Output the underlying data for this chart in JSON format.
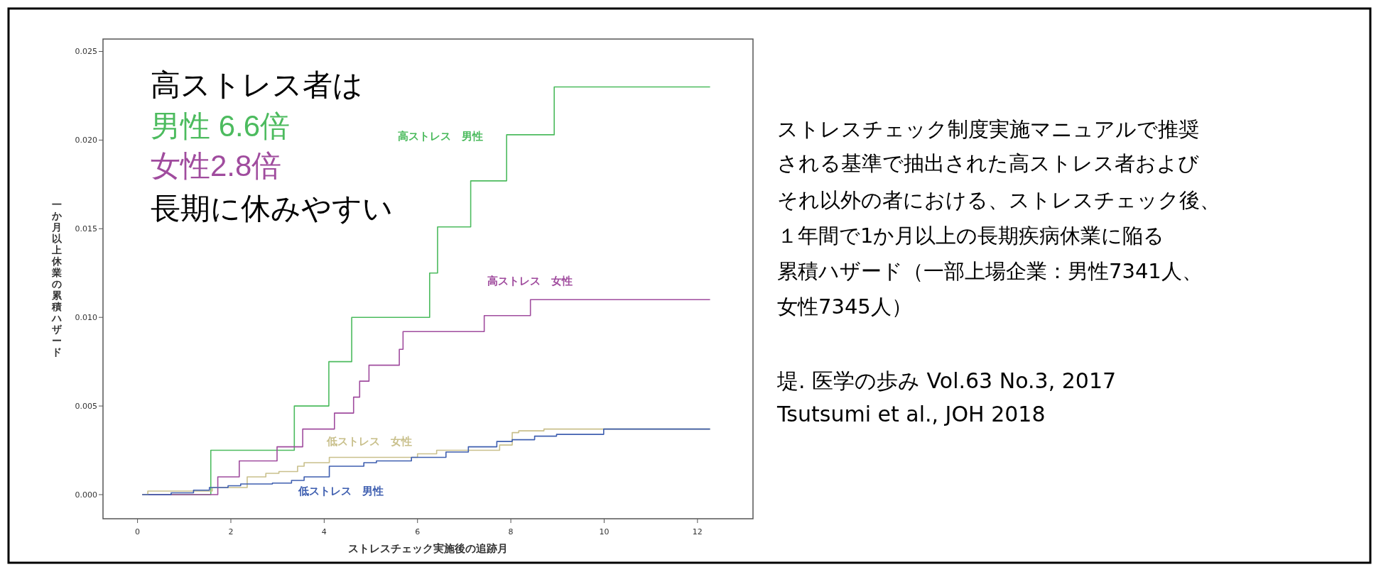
{
  "chart_data": {
    "type": "step",
    "xlabel": "ストレスチェック実施後の追跡月",
    "ylabel": "一か月以上休業の累積ハザード",
    "xlim": [
      -0.74,
      13.19
    ],
    "ylim": [
      -0.00136,
      0.0257
    ],
    "xticks": [
      0,
      2,
      4,
      6,
      8,
      10,
      12
    ],
    "yticks": [
      {
        "value": 0,
        "label": "0.000"
      },
      {
        "value": 0.005,
        "label": "0.005"
      },
      {
        "value": 0.01,
        "label": "0.010"
      },
      {
        "value": 0.015,
        "label": "0.015"
      },
      {
        "value": 0.02,
        "label": "0.020"
      },
      {
        "value": 0.025,
        "label": "0.025"
      }
    ],
    "series": [
      {
        "name": "高ストレス　男性",
        "color": "#4cbb5e",
        "x": [
          0.1,
          1.57,
          3.36,
          4.1,
          4.59,
          6.26,
          6.43,
          7.14,
          7.91,
          8.93,
          12.27
        ],
        "values": [
          0,
          0.0025,
          0.005,
          0.0075,
          0.01,
          0.0125,
          0.0151,
          0.0177,
          0.0203,
          0.023,
          0.023
        ]
      },
      {
        "name": "高ストレス　女性",
        "color": "#a04c9e",
        "x": [
          0.1,
          1.72,
          2.18,
          2.99,
          3.54,
          4.22,
          4.63,
          4.76,
          4.96,
          5.61,
          5.69,
          7.43,
          8.42,
          12.27
        ],
        "values": [
          0,
          0.001,
          0.0019,
          0.0027,
          0.0037,
          0.0046,
          0.0055,
          0.0064,
          0.0073,
          0.0082,
          0.0092,
          0.0101,
          0.011,
          0.011
        ]
      },
      {
        "name": "低ストレス　女性",
        "color": "#c9c08c",
        "x": [
          0.1,
          0.22,
          1.6,
          2.35,
          2.75,
          3.03,
          3.43,
          3.57,
          4.11,
          6.0,
          6.41,
          7.76,
          8.03,
          8.17,
          8.71,
          12.27
        ],
        "values": [
          0,
          0.0002,
          0.0004,
          0.001,
          0.0012,
          0.0013,
          0.0016,
          0.0018,
          0.0021,
          0.0023,
          0.0025,
          0.0028,
          0.0035,
          0.0036,
          0.0037,
          0.0037
        ]
      },
      {
        "name": "低ストレス　男性",
        "color": "#3f5fb0",
        "x": [
          0.1,
          0.72,
          1.2,
          1.54,
          1.94,
          2.21,
          2.89,
          3.3,
          3.57,
          4.11,
          4.85,
          5.12,
          5.87,
          6.61,
          7.09,
          7.7,
          8.03,
          8.51,
          8.98,
          9.99,
          12.27
        ],
        "values": [
          0,
          0.0001,
          0.00025,
          0.0004,
          0.0005,
          0.0006,
          0.00065,
          0.0008,
          0.001,
          0.0016,
          0.0018,
          0.0019,
          0.0021,
          0.0024,
          0.0027,
          0.003,
          0.0031,
          0.0033,
          0.0034,
          0.0037,
          0.0037
        ]
      }
    ],
    "annotations": [
      "高ストレス者は",
      "男性 6.6倍",
      "女性2.8倍",
      "長期に休みやすい",
      "ストレスチェック制度実施マニュアルで推奨",
      "される基準で抽出された高ストレス者および",
      "それ以外の者における、ストレスチェック後、",
      "１年間で1か月以上の長期疾病休業に陥る",
      "累積ハザード（一部上場企業：男性7341人、",
      "女性7345人）",
      "堤. 医学の歩み Vol.63 No.3, 2017",
      "Tsutsumi et al., JOH 2018"
    ]
  }
}
